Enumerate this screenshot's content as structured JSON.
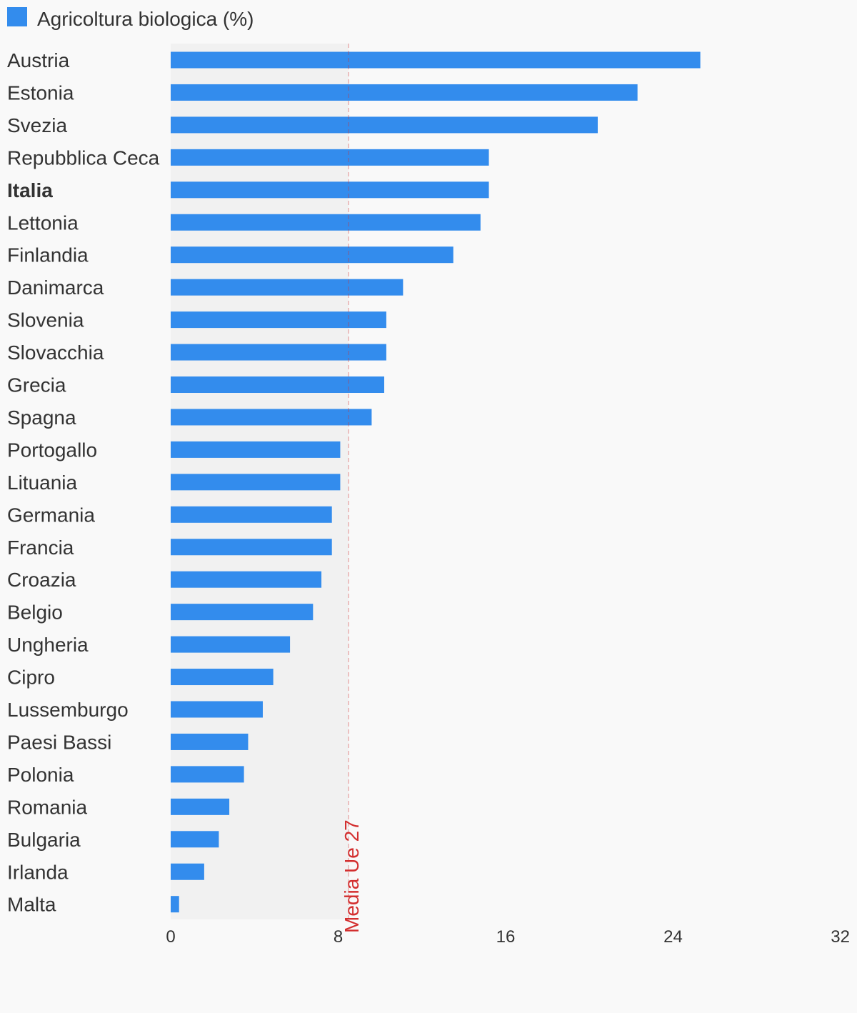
{
  "chart_data": {
    "type": "bar",
    "orientation": "horizontal",
    "legend": {
      "label": "Agricoltura biologica (%)",
      "color": "#338ced",
      "placement": "top-left"
    },
    "categories": [
      "Austria",
      "Estonia",
      "Svezia",
      "Repubblica Ceca",
      "Italia",
      "Lettonia",
      "Finlandia",
      "Danimarca",
      "Slovenia",
      "Slovacchia",
      "Grecia",
      "Spagna",
      "Portogallo",
      "Lituania",
      "Germania",
      "Francia",
      "Croazia",
      "Belgio",
      "Ungheria",
      "Cipro",
      "Lussemburgo",
      "Paesi Bassi",
      "Polonia",
      "Romania",
      "Bulgaria",
      "Irlanda",
      "Malta"
    ],
    "highlight": "Italia",
    "series": [
      {
        "name": "Agricoltura biologica (%)",
        "values": [
          25.3,
          22.3,
          20.4,
          15.2,
          15.2,
          14.8,
          13.5,
          11.1,
          10.3,
          10.3,
          10.2,
          9.6,
          8.1,
          8.1,
          7.7,
          7.7,
          7.2,
          6.8,
          5.7,
          4.9,
          4.4,
          3.7,
          3.5,
          2.8,
          2.3,
          1.6,
          0.4
        ]
      }
    ],
    "xlim": [
      0,
      32
    ],
    "xticks": [
      0,
      8,
      16,
      24,
      32
    ],
    "reference": {
      "label": "Media Ue 27",
      "value": 8.5,
      "color": "#d32f2f"
    },
    "grid": false
  }
}
